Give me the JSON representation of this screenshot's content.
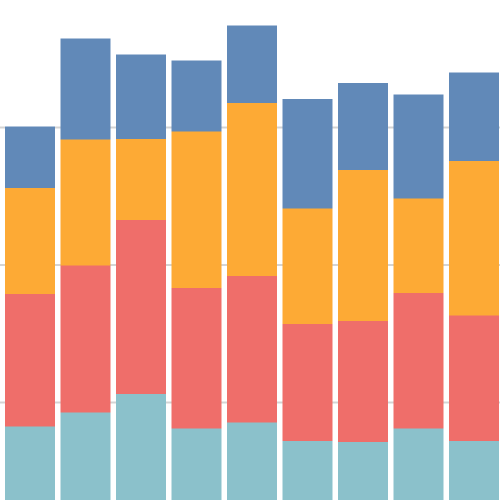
{
  "chart_data": {
    "type": "bar",
    "stacked": true,
    "title": "",
    "xlabel": "",
    "ylabel": "",
    "categories": [
      "",
      "",
      "",
      "",
      "",
      "",
      "",
      "",
      ""
    ],
    "ylim": [
      0,
      1
    ],
    "grid": true,
    "series": [
      {
        "color": "#8BC1CB",
        "values": [
          0.147,
          0.175,
          0.212,
          0.143,
          0.155,
          0.118,
          0.116,
          0.143,
          0.118
        ]
      },
      {
        "color": "#EF6E6A",
        "values": [
          0.265,
          0.294,
          0.348,
          0.281,
          0.293,
          0.234,
          0.242,
          0.271,
          0.251
        ]
      },
      {
        "color": "#FDAA35",
        "values": [
          0.212,
          0.252,
          0.162,
          0.313,
          0.346,
          0.231,
          0.302,
          0.189,
          0.309
        ]
      },
      {
        "color": "#6189B8",
        "values": [
          0.123,
          0.202,
          0.169,
          0.142,
          0.155,
          0.219,
          0.174,
          0.208,
          0.177
        ]
      }
    ],
    "gridlines": [
      0.195,
      0.47,
      0.745
    ],
    "gridline_color": "#d4d4d4"
  }
}
